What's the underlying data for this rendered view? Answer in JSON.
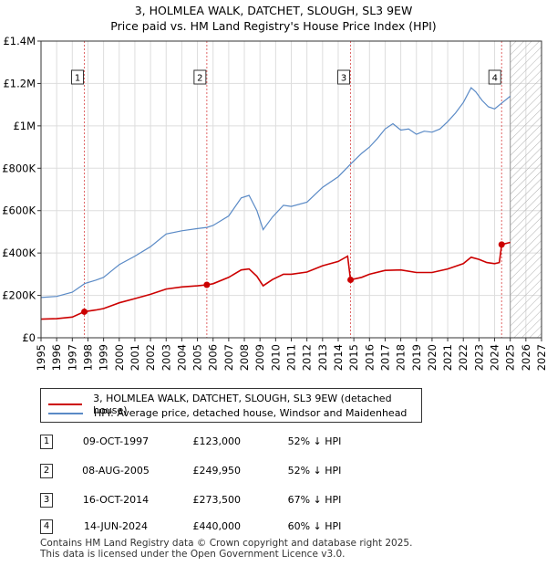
{
  "title_line1": "3, HOLMLEA WALK, DATCHET, SLOUGH, SL3 9EW",
  "title_line2": "Price paid vs. HM Land Registry's House Price Index (HPI)",
  "chart_data": {
    "type": "line",
    "xlim": [
      1995,
      2027
    ],
    "ylim": [
      0,
      1400000
    ],
    "y_ticks": [
      0,
      200000,
      400000,
      600000,
      800000,
      1000000,
      1200000,
      1400000
    ],
    "y_tick_labels": [
      "£0",
      "£200K",
      "£400K",
      "£600K",
      "£800K",
      "£1M",
      "£1.2M",
      "£1.4M"
    ],
    "x_ticks": [
      1995,
      1996,
      1997,
      1998,
      1999,
      2000,
      2001,
      2002,
      2003,
      2004,
      2005,
      2006,
      2007,
      2008,
      2009,
      2010,
      2011,
      2012,
      2013,
      2014,
      2015,
      2016,
      2017,
      2018,
      2019,
      2020,
      2021,
      2022,
      2023,
      2024,
      2025,
      2026,
      2027
    ],
    "future_hatch_start": 2025.0,
    "series": [
      {
        "name": "HPI: Average price, detached house, Windsor and Maidenhead",
        "color": "#5a8ac6",
        "points": [
          [
            1995,
            190000
          ],
          [
            1996,
            195000
          ],
          [
            1997,
            215000
          ],
          [
            1997.8,
            256000
          ],
          [
            1998.5,
            272000
          ],
          [
            1999,
            285000
          ],
          [
            2000,
            345000
          ],
          [
            2001,
            385000
          ],
          [
            2002,
            430000
          ],
          [
            2003,
            490000
          ],
          [
            2004,
            505000
          ],
          [
            2005,
            515000
          ],
          [
            2005.6,
            521000
          ],
          [
            2006,
            530000
          ],
          [
            2007,
            575000
          ],
          [
            2007.8,
            660000
          ],
          [
            2008.3,
            672000
          ],
          [
            2008.8,
            600000
          ],
          [
            2009.2,
            510000
          ],
          [
            2009.8,
            570000
          ],
          [
            2010.5,
            625000
          ],
          [
            2011,
            620000
          ],
          [
            2012,
            640000
          ],
          [
            2013,
            710000
          ],
          [
            2014,
            760000
          ],
          [
            2014.8,
            820000
          ],
          [
            2015.5,
            870000
          ],
          [
            2016,
            900000
          ],
          [
            2016.5,
            940000
          ],
          [
            2017,
            985000
          ],
          [
            2017.5,
            1010000
          ],
          [
            2018,
            980000
          ],
          [
            2018.5,
            985000
          ],
          [
            2019,
            960000
          ],
          [
            2019.5,
            975000
          ],
          [
            2020,
            970000
          ],
          [
            2020.5,
            985000
          ],
          [
            2021,
            1020000
          ],
          [
            2021.5,
            1060000
          ],
          [
            2022,
            1110000
          ],
          [
            2022.5,
            1180000
          ],
          [
            2022.8,
            1160000
          ],
          [
            2023.2,
            1120000
          ],
          [
            2023.6,
            1090000
          ],
          [
            2024,
            1080000
          ],
          [
            2024.5,
            1110000
          ],
          [
            2025,
            1140000
          ]
        ]
      },
      {
        "name": "3, HOLMLEA WALK, DATCHET, SLOUGH, SL3 9EW (detached house)",
        "color": "#cc0000",
        "points": [
          [
            1995,
            88000
          ],
          [
            1996,
            90000
          ],
          [
            1997,
            98000
          ],
          [
            1997.77,
            123000
          ],
          [
            1998.5,
            131000
          ],
          [
            1999,
            138000
          ],
          [
            2000,
            165000
          ],
          [
            2001,
            185000
          ],
          [
            2002,
            205000
          ],
          [
            2003,
            230000
          ],
          [
            2004,
            240000
          ],
          [
            2005,
            245000
          ],
          [
            2005.6,
            249950
          ],
          [
            2006,
            255000
          ],
          [
            2007,
            285000
          ],
          [
            2007.8,
            320000
          ],
          [
            2008.3,
            325000
          ],
          [
            2008.8,
            290000
          ],
          [
            2009.2,
            245000
          ],
          [
            2009.8,
            275000
          ],
          [
            2010.5,
            300000
          ],
          [
            2011,
            300000
          ],
          [
            2012,
            310000
          ],
          [
            2013,
            340000
          ],
          [
            2014,
            360000
          ],
          [
            2014.6,
            385000
          ],
          [
            2014.79,
            273500
          ],
          [
            2015.5,
            285000
          ],
          [
            2016,
            300000
          ],
          [
            2017,
            318000
          ],
          [
            2018,
            320000
          ],
          [
            2019,
            308000
          ],
          [
            2020,
            308000
          ],
          [
            2021,
            325000
          ],
          [
            2022,
            350000
          ],
          [
            2022.5,
            380000
          ],
          [
            2023,
            370000
          ],
          [
            2023.5,
            355000
          ],
          [
            2024,
            350000
          ],
          [
            2024.3,
            355000
          ],
          [
            2024.45,
            440000
          ],
          [
            2025,
            450000
          ]
        ]
      }
    ],
    "sales": [
      {
        "label": "1",
        "x": 1997.77,
        "price": 123000
      },
      {
        "label": "2",
        "x": 2005.6,
        "price": 249950
      },
      {
        "label": "3",
        "x": 2014.79,
        "price": 273500
      },
      {
        "label": "4",
        "x": 2024.45,
        "price": 440000
      }
    ]
  },
  "legend": {
    "property": "3, HOLMLEA WALK, DATCHET, SLOUGH, SL3 9EW (detached house)",
    "hpi": "HPI: Average price, detached house, Windsor and Maidenhead",
    "property_color": "#cc0000",
    "hpi_color": "#5a8ac6"
  },
  "sales_table": [
    {
      "num": "1",
      "date": "09-OCT-1997",
      "price": "£123,000",
      "hpi": "52% ↓ HPI"
    },
    {
      "num": "2",
      "date": "08-AUG-2005",
      "price": "£249,950",
      "hpi": "52% ↓ HPI"
    },
    {
      "num": "3",
      "date": "16-OCT-2014",
      "price": "£273,500",
      "hpi": "67% ↓ HPI"
    },
    {
      "num": "4",
      "date": "14-JUN-2024",
      "price": "£440,000",
      "hpi": "60% ↓ HPI"
    }
  ],
  "footer": {
    "line1": "Contains HM Land Registry data © Crown copyright and database right 2025.",
    "line2": "This data is licensed under the Open Government Licence v3.0."
  }
}
